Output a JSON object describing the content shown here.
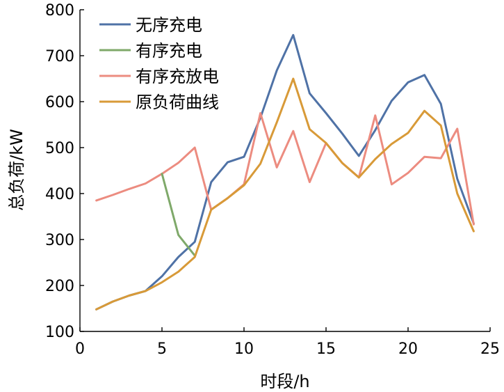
{
  "chart_data": {
    "type": "line",
    "title": "",
    "xlabel": "时段/h",
    "ylabel": "总负荷/kW",
    "xlim": [
      0,
      25
    ],
    "ylim": [
      100,
      800
    ],
    "xticks": [
      0,
      5,
      10,
      15,
      20,
      25
    ],
    "yticks": [
      100,
      200,
      300,
      400,
      500,
      600,
      700,
      800
    ],
    "grid": false,
    "legend_position": "top-left",
    "series": [
      {
        "name": "无序充电",
        "color": "#4f72a6",
        "x": [
          1,
          2,
          3,
          4,
          5,
          6,
          7,
          8,
          9,
          10,
          11,
          12,
          13,
          14,
          15,
          16,
          17,
          18,
          19,
          20,
          21,
          22,
          23,
          24
        ],
        "y": [
          148,
          165,
          178,
          188,
          220,
          262,
          295,
          425,
          468,
          480,
          565,
          668,
          745,
          618,
          575,
          530,
          482,
          538,
          602,
          642,
          658,
          595,
          432,
          335
        ]
      },
      {
        "name": "有序充电",
        "color": "#7fa96a",
        "x": [
          5,
          6,
          7
        ],
        "y": [
          443,
          310,
          265
        ]
      },
      {
        "name": "有序充放电",
        "color": "#ec8c80",
        "x": [
          1,
          2,
          3,
          4,
          5,
          6,
          7,
          8,
          9,
          10,
          11,
          12,
          13,
          14,
          15,
          16,
          17,
          18,
          19,
          20,
          21,
          22,
          23,
          24
        ],
        "y": [
          385,
          397,
          410,
          422,
          443,
          467,
          500,
          365,
          390,
          420,
          575,
          457,
          536,
          425,
          510,
          466,
          435,
          570,
          420,
          445,
          480,
          477,
          541,
          333
        ]
      },
      {
        "name": "原负荷曲线",
        "color": "#d89a38",
        "x": [
          1,
          2,
          3,
          4,
          5,
          6,
          7,
          8,
          9,
          10,
          11,
          12,
          13,
          14,
          15,
          16,
          17,
          18,
          19,
          20,
          21,
          22,
          23,
          24
        ],
        "y": [
          148,
          165,
          178,
          188,
          207,
          230,
          262,
          365,
          390,
          418,
          465,
          555,
          650,
          540,
          510,
          466,
          435,
          475,
          508,
          532,
          580,
          548,
          400,
          318
        ]
      }
    ]
  }
}
